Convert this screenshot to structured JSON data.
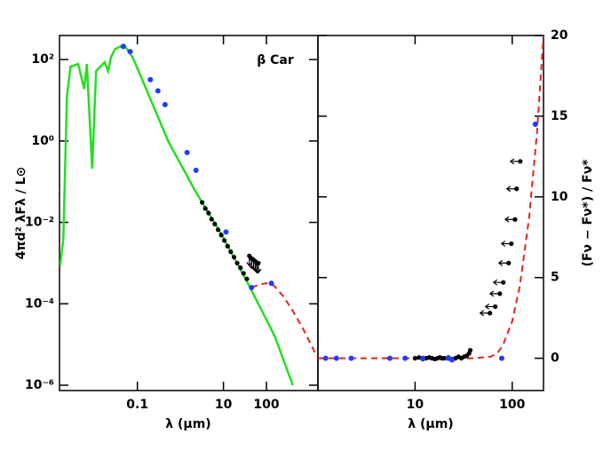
{
  "chart_data": [
    {
      "type": "line",
      "annotation": "β Car",
      "xlabel": "λ (μm)",
      "ylabel": "4πd² λFλ / L⊙",
      "xlog": true,
      "ylog": true,
      "yaxis_side": "left",
      "xlim": [
        0.00155,
        1570
      ],
      "ylim": [
        7.4e-07,
        390
      ],
      "xticks": [
        0.1,
        10,
        100
      ],
      "yticks": [
        {
          "value": 100,
          "label": "10²"
        },
        {
          "value": 1,
          "label": "10⁰"
        },
        {
          "value": 0.01,
          "label": "10⁻²"
        },
        {
          "value": 0.0001,
          "label": "10⁻⁴"
        },
        {
          "value": 1e-06,
          "label": "10⁻⁶"
        }
      ],
      "series": [
        {
          "style": "line",
          "color": "#22e022",
          "x": [
            0.0016,
            0.0019,
            0.0023,
            0.0028,
            0.0042,
            0.0058,
            0.0067,
            0.0089,
            0.011,
            0.0173,
            0.021,
            0.024,
            0.03,
            0.049,
            0.079,
            0.16,
            0.53,
            2.2,
            9.1,
            37,
            156,
            410
          ],
          "values": [
            0.00085,
            0.0039,
            12,
            67,
            78,
            19,
            78,
            0.21,
            52,
            86,
            52,
            110,
            180,
            230,
            110,
            19,
            0.95,
            0.06,
            0.005,
            0.00032,
            1.6e-05,
            1e-06
          ]
        },
        {
          "style": "dashed",
          "color": "#e8201b",
          "x": [
            45,
            70,
            100,
            150,
            250,
            400,
            700,
            1500
          ],
          "values": [
            0.00025,
            0.0003,
            0.00032,
            0.00028,
            0.00015,
            7e-05,
            2.5e-05,
            5e-06
          ]
        },
        {
          "style": "points",
          "color": "#000000",
          "x": [
            3.2,
            3.8,
            4.5,
            5.3,
            6.3,
            7.5,
            8.9,
            10.5,
            12.5,
            14.8,
            17.6,
            20.9,
            24.8,
            29.4,
            35
          ],
          "values": [
            0.031,
            0.022,
            0.017,
            0.012,
            0.0091,
            0.0066,
            0.0049,
            0.0036,
            0.0026,
            0.0019,
            0.0014,
            0.001,
            0.00077,
            0.00056,
            0.00041
          ]
        },
        {
          "style": "limits-down",
          "color": "#000000",
          "x": [
            40,
            45,
            50,
            55,
            60,
            65
          ],
          "values": [
            0.0015,
            0.0013,
            0.0012,
            0.0011,
            0.001,
            0.001
          ]
        },
        {
          "style": "points",
          "color": "#1e3cff",
          "x": [
            0.047,
            0.068,
            0.2,
            0.3,
            0.44,
            1.43,
            2.3,
            11.5,
            45,
            130
          ],
          "values": [
            210,
            157,
            32,
            17,
            7.8,
            0.52,
            0.19,
            0.0058,
            0.00025,
            0.00032
          ]
        }
      ]
    },
    {
      "type": "line",
      "xlabel": "λ (μm)",
      "ylabel": "(Fν − Fν*) / Fν*",
      "xlog": true,
      "ylog": false,
      "yaxis_side": "right",
      "xlim": [
        1,
        210
      ],
      "ylim": [
        -2,
        20
      ],
      "xticks": [
        10,
        100
      ],
      "yticks": [
        0,
        5,
        10,
        15,
        20
      ],
      "series": [
        {
          "style": "dashed",
          "color": "#e8201b",
          "x": [
            1,
            10,
            40,
            60,
            70,
            80,
            100,
            120,
            150,
            180,
            210
          ],
          "values": [
            0,
            0,
            0,
            0.1,
            0.3,
            0.8,
            2.3,
            4.5,
            8.8,
            14,
            20
          ]
        },
        {
          "style": "points",
          "color": "#000000",
          "x": [
            10,
            11,
            12,
            13,
            14,
            15,
            16,
            17,
            18,
            19,
            20,
            22,
            24,
            26,
            28,
            30,
            32,
            34,
            36,
            37
          ],
          "values": [
            0,
            0.05,
            -0.05,
            0,
            0.05,
            0,
            -0.05,
            0,
            0.05,
            0,
            0,
            0.05,
            -0.05,
            0,
            0.1,
            0,
            0.1,
            0.15,
            0.3,
            0.5
          ]
        },
        {
          "style": "limits-left",
          "color": "#000000",
          "x": [
            59,
            67,
            74.5,
            81,
            92,
            98,
            107,
            111,
            121
          ],
          "values": [
            2.8,
            3.2,
            4.0,
            4.7,
            5.9,
            7.1,
            8.6,
            10.5,
            12.2
          ]
        },
        {
          "style": "points",
          "color": "#1e3cff",
          "x": [
            1.2,
            1.55,
            2.2,
            5.5,
            7.9,
            12,
            22,
            24,
            78,
            173
          ],
          "values": [
            0,
            0,
            0,
            0,
            0,
            0,
            0,
            -0.1,
            0,
            14.5
          ]
        }
      ]
    }
  ]
}
